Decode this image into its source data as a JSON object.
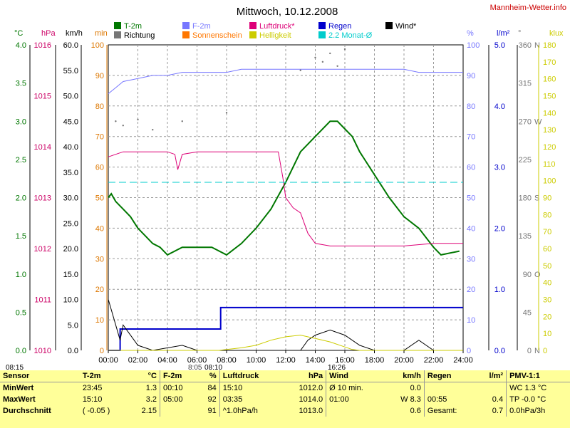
{
  "title": "Mittwoch, 10.12.2008",
  "site": "Mannheim-Wetter.info",
  "timestamp_left": "08:15",
  "markers": {
    "sunrise": "8:05",
    "sunset": "16:26",
    "start": "08:10"
  },
  "legend": [
    {
      "label": "T-2m",
      "color": "#007700"
    },
    {
      "label": "F-2m",
      "color": "#7777ff"
    },
    {
      "label": "Luftdruck*",
      "color": "#dd0077"
    },
    {
      "label": "Regen",
      "color": "#0000cc"
    },
    {
      "label": "Wind*",
      "color": "#000000"
    },
    {
      "label": "Richtung",
      "color": "#777777"
    },
    {
      "label": "Sonnenschein",
      "color": "#ff7700"
    },
    {
      "label": "Helligkeit",
      "color": "#cccc00"
    },
    {
      "label": "2.2 Monat-Ø",
      "color": "#00cccc"
    }
  ],
  "axes": {
    "c_unit": "°C",
    "hpa_unit": "hPa",
    "kmh_unit": "km/h",
    "min_unit": "min",
    "pct_unit": "%",
    "lm2_unit": "l/m²",
    "deg_unit": "°",
    "klux_unit": "klux",
    "c_ticks": [
      "0.0",
      "0.5",
      "1.0",
      "1.5",
      "2.0",
      "2.5",
      "3.0",
      "3.5",
      "4.0"
    ],
    "hpa_ticks": [
      "1010",
      "1011",
      "1012",
      "1013",
      "1014",
      "1015",
      "1016"
    ],
    "kmh_ticks": [
      "0.0",
      "5.0",
      "10.0",
      "15.0",
      "20.0",
      "25.0",
      "30.0",
      "35.0",
      "40.0",
      "45.0",
      "50.0",
      "55.0",
      "60.0"
    ],
    "min_ticks": [
      "0",
      "10",
      "20",
      "30",
      "40",
      "50",
      "60",
      "70",
      "80",
      "90",
      "100"
    ],
    "pct_ticks": [
      "0",
      "10",
      "20",
      "30",
      "40",
      "50",
      "60",
      "70",
      "80",
      "90",
      "100"
    ],
    "lm2_ticks": [
      "0.0",
      "1.0",
      "2.0",
      "3.0",
      "4.0",
      "5.0"
    ],
    "deg_ticks": [
      "0",
      "45",
      "90",
      "135",
      "180",
      "225",
      "270",
      "315",
      "360"
    ],
    "dir_ticks": [
      "N",
      "O",
      "S",
      "W",
      "N"
    ],
    "klux_ticks": [
      "0",
      "10",
      "20",
      "30",
      "40",
      "50",
      "60",
      "70",
      "80",
      "90",
      "100",
      "110",
      "120",
      "130",
      "140",
      "150",
      "160",
      "170",
      "180"
    ],
    "x_ticks": [
      "00:00",
      "02:00",
      "04:00",
      "06:00",
      "08:00",
      "10:00",
      "12:00",
      "14:00",
      "16:00",
      "18:00",
      "20:00",
      "22:00",
      "24:00"
    ]
  },
  "chart_data": {
    "type": "line",
    "title": "Mittwoch, 10.12.2008",
    "x_unit": "hours",
    "series": [
      {
        "name": "T-2m",
        "unit": "°C",
        "points": [
          [
            0,
            2.0
          ],
          [
            0.2,
            2.05
          ],
          [
            0.5,
            1.95
          ],
          [
            1,
            1.85
          ],
          [
            1.5,
            1.75
          ],
          [
            2,
            1.6
          ],
          [
            3,
            1.4
          ],
          [
            3.5,
            1.35
          ],
          [
            4,
            1.25
          ],
          [
            5,
            1.35
          ],
          [
            6,
            1.35
          ],
          [
            7,
            1.35
          ],
          [
            8,
            1.25
          ],
          [
            9,
            1.4
          ],
          [
            10,
            1.6
          ],
          [
            11,
            1.85
          ],
          [
            12,
            2.2
          ],
          [
            13,
            2.6
          ],
          [
            14,
            2.8
          ],
          [
            15,
            3.0
          ],
          [
            15.5,
            3.0
          ],
          [
            16,
            2.9
          ],
          [
            16.5,
            2.8
          ],
          [
            17,
            2.6
          ],
          [
            18,
            2.3
          ],
          [
            19,
            2.0
          ],
          [
            20,
            1.75
          ],
          [
            21,
            1.6
          ],
          [
            22,
            1.35
          ],
          [
            22.5,
            1.25
          ],
          [
            23.75,
            1.3
          ]
        ]
      },
      {
        "name": "F-2m",
        "unit": "%",
        "points": [
          [
            0,
            84
          ],
          [
            0.5,
            86
          ],
          [
            1,
            88
          ],
          [
            2,
            89
          ],
          [
            3,
            90
          ],
          [
            4,
            90
          ],
          [
            5,
            91
          ],
          [
            6,
            91
          ],
          [
            7,
            91
          ],
          [
            8,
            91
          ],
          [
            9,
            92
          ],
          [
            10,
            92
          ],
          [
            11,
            92
          ],
          [
            12,
            92
          ],
          [
            13,
            92
          ],
          [
            14,
            92
          ],
          [
            15,
            92
          ],
          [
            16,
            92
          ],
          [
            17,
            92
          ],
          [
            18,
            92
          ],
          [
            19,
            92
          ],
          [
            20,
            92
          ],
          [
            21,
            91
          ],
          [
            22,
            91
          ],
          [
            23,
            91
          ],
          [
            24,
            91
          ]
        ]
      },
      {
        "name": "Luftdruck*",
        "unit": "hPa",
        "points": [
          [
            0,
            1013.8
          ],
          [
            0.5,
            1013.85
          ],
          [
            1,
            1013.9
          ],
          [
            2,
            1013.9
          ],
          [
            4,
            1013.9
          ],
          [
            4.5,
            1013.85
          ],
          [
            4.7,
            1013.55
          ],
          [
            5,
            1013.85
          ],
          [
            6,
            1013.9
          ],
          [
            8,
            1013.9
          ],
          [
            10,
            1013.9
          ],
          [
            11.5,
            1013.9
          ],
          [
            11.8,
            1013.4
          ],
          [
            12,
            1013.0
          ],
          [
            12.5,
            1012.8
          ],
          [
            13,
            1012.7
          ],
          [
            13.5,
            1012.3
          ],
          [
            14,
            1012.1
          ],
          [
            15,
            1012.05
          ],
          [
            16,
            1012.05
          ],
          [
            18,
            1012.05
          ],
          [
            20,
            1012.05
          ],
          [
            22,
            1012.1
          ],
          [
            24,
            1012.1
          ]
        ]
      },
      {
        "name": "Regen",
        "unit": "l/m²",
        "points": [
          [
            0,
            0
          ],
          [
            0.8,
            0
          ],
          [
            0.8,
            0.35
          ],
          [
            1,
            0.35
          ],
          [
            7.6,
            0.35
          ],
          [
            7.6,
            0.7
          ],
          [
            24,
            0.7
          ]
        ]
      },
      {
        "name": "Wind*",
        "unit": "km/h",
        "points": [
          [
            0,
            10
          ],
          [
            0.5,
            5
          ],
          [
            0.8,
            2
          ],
          [
            1,
            5
          ],
          [
            1.5,
            3
          ],
          [
            2,
            1
          ],
          [
            3,
            0
          ],
          [
            5,
            1
          ],
          [
            6,
            0
          ],
          [
            13,
            0
          ],
          [
            13.5,
            2
          ],
          [
            14,
            3
          ],
          [
            15,
            4
          ],
          [
            16,
            3
          ],
          [
            17,
            1
          ],
          [
            18,
            0
          ],
          [
            20,
            0
          ],
          [
            21,
            2
          ],
          [
            22,
            0
          ],
          [
            24,
            0
          ]
        ]
      },
      {
        "name": "Helligkeit",
        "unit": "klux",
        "points": [
          [
            0,
            0
          ],
          [
            7.5,
            0
          ],
          [
            8,
            0.5
          ],
          [
            9,
            1.5
          ],
          [
            10,
            3
          ],
          [
            11,
            6
          ],
          [
            12,
            8
          ],
          [
            13,
            9
          ],
          [
            14,
            7
          ],
          [
            15,
            5
          ],
          [
            16,
            2
          ],
          [
            16.5,
            0.5
          ],
          [
            17,
            0
          ],
          [
            24,
            0
          ]
        ]
      },
      {
        "name": "2.2 Monat-Ø",
        "unit": "°C",
        "points": [
          [
            0,
            2.2
          ],
          [
            24,
            2.2
          ]
        ]
      }
    ],
    "ylim_c": [
      0,
      4
    ],
    "ylim_pct": [
      0,
      100
    ],
    "ylim_hpa": [
      1010,
      1016
    ],
    "ylim_kmh": [
      0,
      60
    ],
    "ylim_lm2": [
      0,
      5
    ],
    "ylim_klux": [
      0,
      180
    ],
    "grid": true
  },
  "table": {
    "headers": [
      "Sensor",
      "T-2m",
      "°C",
      "F-2m",
      "%",
      "Luftdruck",
      "hPa",
      "Wind",
      "km/h",
      "Regen",
      "l/m²",
      "PMV-1:1"
    ],
    "rows": [
      [
        "MinWert",
        "23:45",
        "1.3",
        "00:10",
        "84",
        "15:10",
        "1012.0",
        "Ø 10 min.",
        "0.0",
        "",
        "",
        "WC 1.3 °C"
      ],
      [
        "MaxWert",
        "15:10",
        "3.2",
        "05:00",
        "92",
        "03:35",
        "1014.0",
        "01:00",
        "W 8.3",
        "00:55",
        "0.4",
        "TP -0.0 °C"
      ],
      [
        "Durchschnitt",
        "( -0.05 )",
        "2.15",
        "",
        "91",
        "^1.0hPa/h",
        "1013.0",
        "",
        "0.6",
        "Gesamt:",
        "0.7",
        "0.0hPa/3h"
      ]
    ]
  }
}
